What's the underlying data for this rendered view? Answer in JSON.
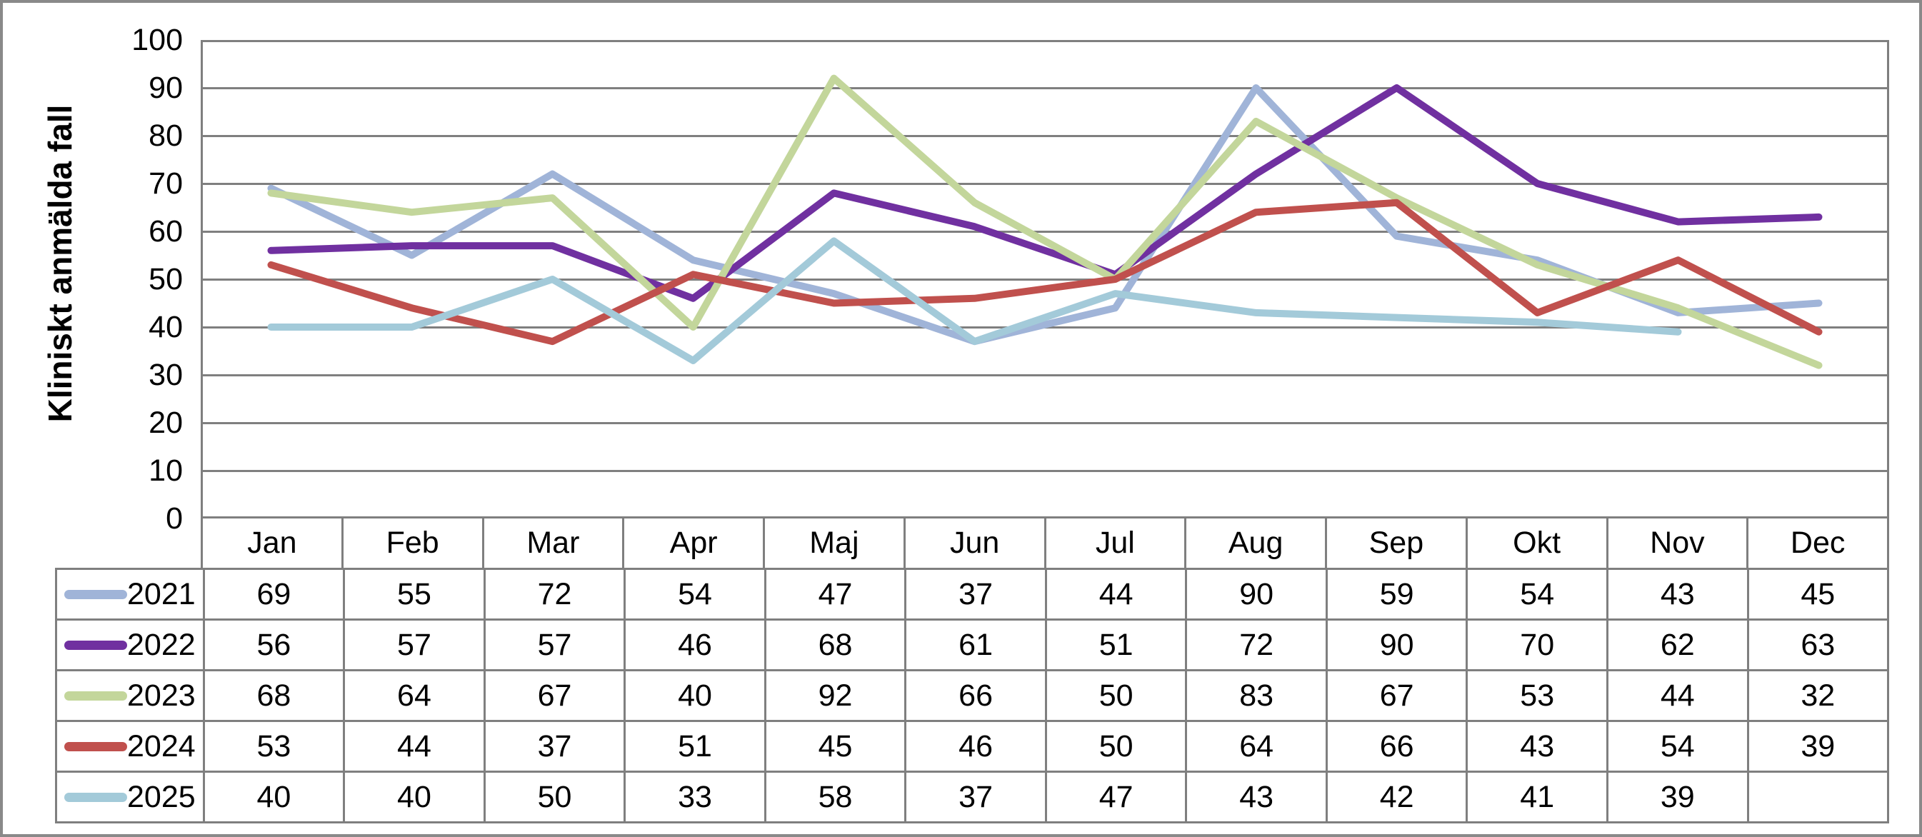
{
  "chart_data": {
    "type": "line",
    "title": "",
    "xlabel": "",
    "ylabel": "Kliniskt anmälda fall",
    "ylim": [
      0,
      100
    ],
    "y_tick_step": 10,
    "y_ticks": [
      100,
      90,
      80,
      70,
      60,
      50,
      40,
      30,
      20,
      10,
      0
    ],
    "grid": true,
    "legend_position": "table-left",
    "gridline_color": "#7F7F7F",
    "categories": [
      "Jan",
      "Feb",
      "Mar",
      "Apr",
      "Maj",
      "Jun",
      "Jul",
      "Aug",
      "Sep",
      "Okt",
      "Nov",
      "Dec"
    ],
    "series": [
      {
        "name": "2021",
        "color": "#A0B4D8",
        "values": [
          69,
          55,
          72,
          54,
          47,
          37,
          44,
          90,
          59,
          54,
          43,
          45
        ]
      },
      {
        "name": "2022",
        "color": "#7030A0",
        "values": [
          56,
          57,
          57,
          46,
          68,
          61,
          51,
          72,
          90,
          70,
          62,
          63
        ]
      },
      {
        "name": "2023",
        "color": "#C3D69B",
        "values": [
          68,
          64,
          67,
          40,
          92,
          66,
          50,
          83,
          67,
          53,
          44,
          32
        ]
      },
      {
        "name": "2024",
        "color": "#C0504D",
        "values": [
          53,
          44,
          37,
          51,
          45,
          46,
          50,
          64,
          66,
          43,
          54,
          39
        ]
      },
      {
        "name": "2025",
        "color": "#A3CAD9",
        "values": [
          40,
          40,
          50,
          33,
          58,
          37,
          47,
          43,
          42,
          41,
          39,
          null
        ]
      }
    ]
  }
}
